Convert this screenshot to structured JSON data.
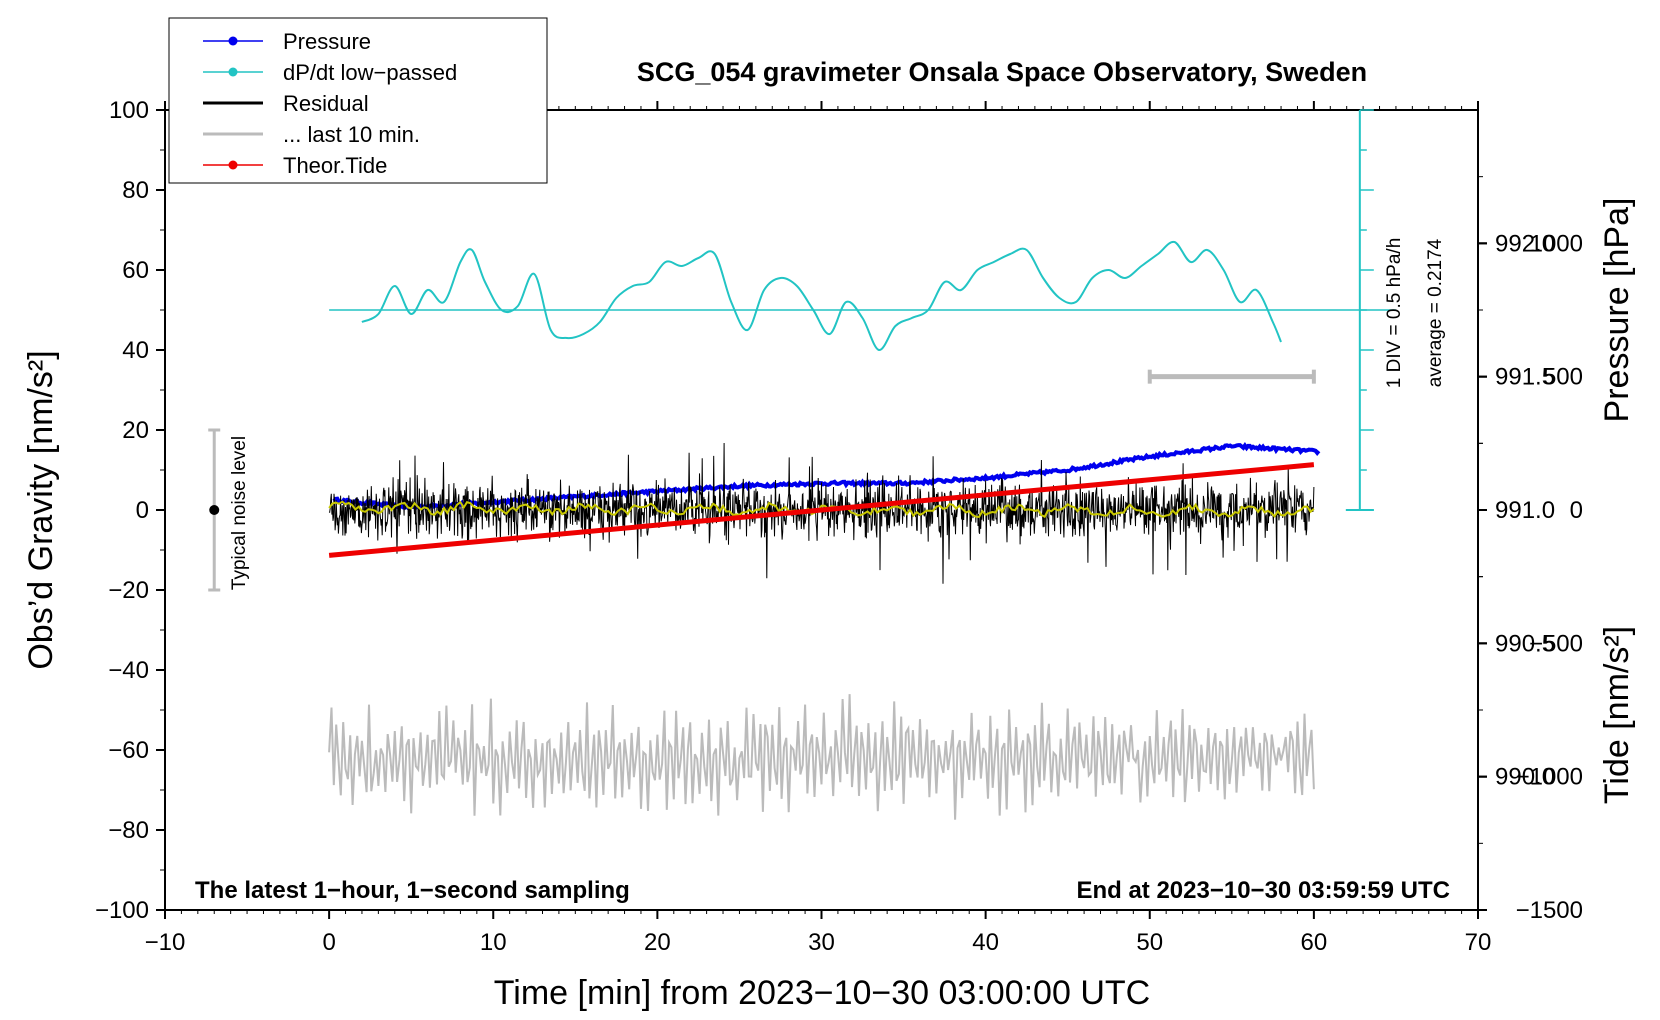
{
  "chart_data": {
    "type": "line",
    "title": "SCG_054 gravimeter Onsala Space Observatory, Sweden",
    "xlabel": "Time [min] from 2023−10−30 03:00:00 UTC",
    "ylabel_left": "Obs’d Gravity [nm/s²]",
    "ylabel_right_pressure": "Pressure [hPa]",
    "ylabel_right_tide": "Tide [nm/s²]",
    "xlim": [
      -10,
      70
    ],
    "ylim": [
      -100,
      100
    ],
    "x_ticks": [
      -10,
      0,
      10,
      20,
      30,
      40,
      50,
      60,
      70
    ],
    "x_tick_labels": [
      "−10",
      "0",
      "10",
      "20",
      "30",
      "40",
      "50",
      "60",
      "70"
    ],
    "y_ticks": [
      -100,
      -80,
      -60,
      -40,
      -20,
      0,
      20,
      40,
      60,
      80,
      100
    ],
    "y_tick_labels": [
      "−100",
      "−80",
      "−60",
      "−40",
      "−20",
      "0",
      "20",
      "40",
      "60",
      "80",
      "100"
    ],
    "pressure_axis": {
      "range": [
        989.5,
        992.5
      ],
      "ticks": [
        990.0,
        990.5,
        991.0,
        991.5,
        992.0
      ],
      "tick_labels": [
        "990.0",
        "990.5",
        "991.0",
        "991.5",
        "992.0"
      ]
    },
    "tide_axis": {
      "range": [
        -1500,
        1500
      ],
      "ticks": [
        -1500,
        -1000,
        -500,
        0,
        500,
        1000
      ],
      "tick_labels": [
        "−1500",
        "−1000",
        "−500",
        "0",
        "500",
        "1000"
      ]
    },
    "legend": [
      {
        "label": "Pressure",
        "color": "#0000ee",
        "marker": true
      },
      {
        "label": "dP/dt low−passed",
        "color": "#22c4c4",
        "marker": true
      },
      {
        "label": "Residual",
        "color": "#000000",
        "marker": false
      },
      {
        "label": "... last 10 min.",
        "color": "#bbbbbb",
        "marker": false
      },
      {
        "label": "Theor.Tide",
        "color": "#ee0000",
        "marker": true
      }
    ],
    "annotations": {
      "dpdt_scale": "1 DIV = 0.5 hPa/h",
      "dpdt_average": "average = 0.2174",
      "noise_label": "Typical noise level",
      "bottom_left": "The latest 1−hour, 1−second sampling",
      "bottom_right": "End at 2023−10−30 03:59:59 UTC"
    },
    "noise_bar": {
      "x": -7,
      "y_center": 0,
      "y_low": -20,
      "y_high": 20
    },
    "last10_bar": {
      "x_start": 50,
      "x_end": 60
    },
    "pressure_series": {
      "name": "Pressure",
      "x": [
        0,
        5,
        10,
        15,
        20,
        25,
        30,
        35,
        40,
        45,
        50,
        55,
        60
      ],
      "values": [
        991.04,
        991.01,
        991.03,
        991.05,
        991.07,
        991.09,
        991.1,
        991.1,
        991.12,
        991.15,
        991.2,
        991.24,
        991.22
      ]
    },
    "dpdt_series": {
      "name": "dP/dt low−passed",
      "x": [
        2,
        3,
        4,
        5,
        6,
        7,
        8,
        8.7,
        9.5,
        10.5,
        11.5,
        12.5,
        13.5,
        14.5,
        15.5,
        16.5,
        17.5,
        18.5,
        19.5,
        20.5,
        21.5,
        22.5,
        23.5,
        24.5,
        25.5,
        26.5,
        27.5,
        28.5,
        29.5,
        30.5,
        31.5,
        32.5,
        33.5,
        34.5,
        35.5,
        36.5,
        37.5,
        38.5,
        39.5,
        40.5,
        41.5,
        42.5,
        43.5,
        44.5,
        45.5,
        46.5,
        47.5,
        48.5,
        49.5,
        50.5,
        51.5,
        52.5,
        53.5,
        54.5,
        55.5,
        56.5,
        57.5,
        58
      ],
      "values": [
        47,
        49,
        56,
        49,
        55,
        52,
        62,
        65,
        57,
        50,
        51,
        59,
        45,
        43,
        44,
        47,
        53,
        56,
        57,
        62,
        61,
        63,
        64,
        52,
        45,
        55,
        58,
        56,
        50,
        44,
        52,
        48,
        40,
        46,
        48,
        50,
        57,
        55,
        60,
        62,
        64,
        65,
        58,
        53,
        52,
        58,
        60,
        58,
        61,
        64,
        67,
        62,
        65,
        60,
        52,
        55,
        47,
        42
      ]
    },
    "dpdt_zero_level_nm": 50,
    "residual_series": {
      "name": "Residual",
      "x_range": [
        0,
        60
      ],
      "envelope": [
        -20,
        21
      ],
      "mean": 0
    },
    "tide_series": {
      "name": "Theor.Tide",
      "x": [
        0,
        60
      ],
      "values": [
        -170,
        170
      ]
    },
    "last10_series": {
      "name": "... last 10 min.",
      "x_range": [
        0,
        60
      ],
      "center": -62,
      "envelope": [
        -82,
        -40
      ]
    }
  }
}
